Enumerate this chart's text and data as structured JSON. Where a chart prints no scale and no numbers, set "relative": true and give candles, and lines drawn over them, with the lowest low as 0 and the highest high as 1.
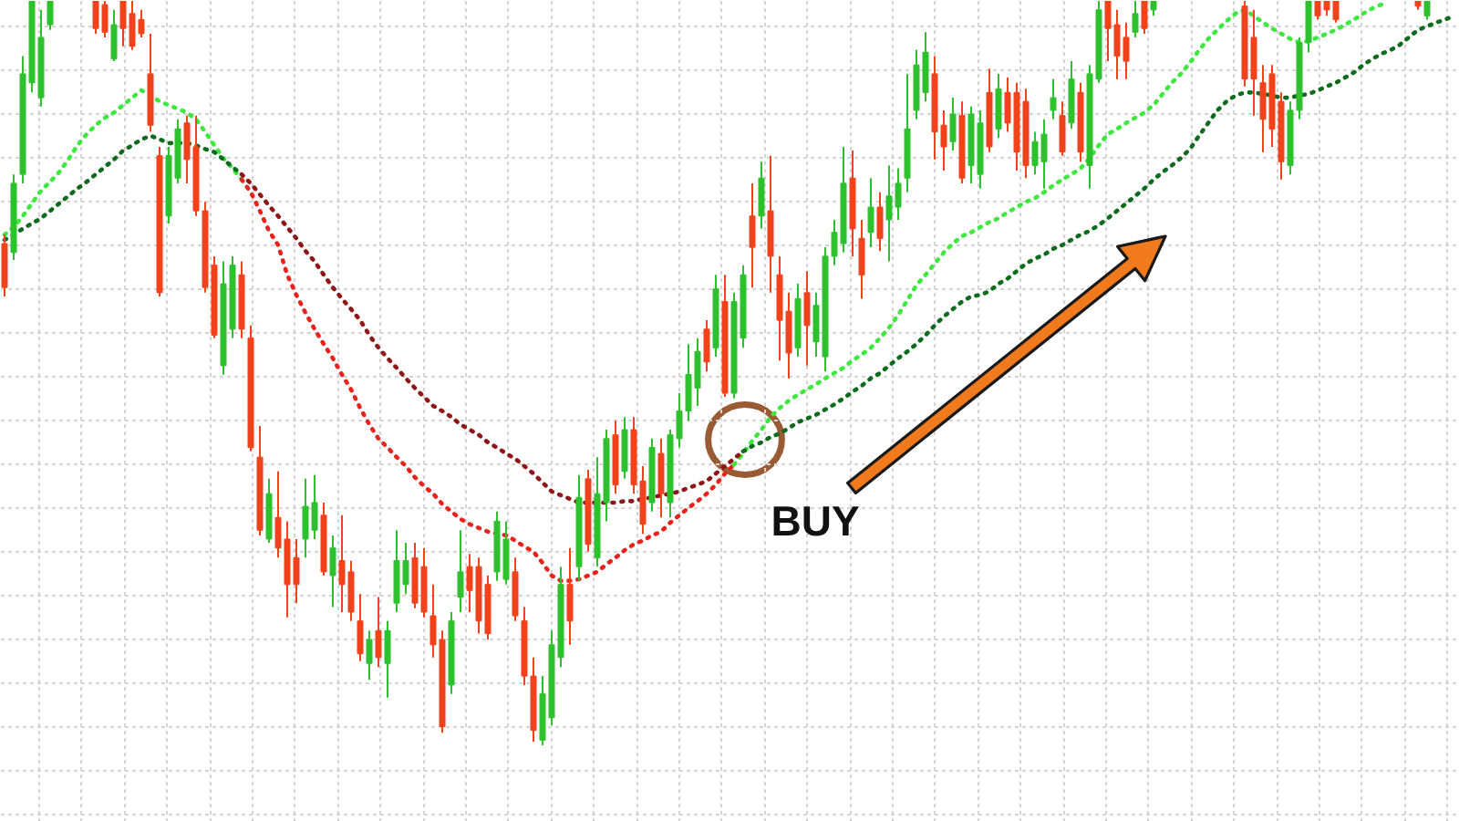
{
  "chart_data": {
    "type": "candlestick",
    "relative": true,
    "tick_labels": false,
    "grid": true,
    "line_style": "dotted",
    "categories": [
      null,
      null,
      null,
      null,
      null,
      null,
      null,
      null,
      null,
      null,
      null,
      null,
      null,
      null,
      null,
      null,
      null,
      null,
      null,
      null,
      null,
      null,
      null,
      null,
      null,
      null,
      null,
      null,
      null,
      null,
      null,
      null,
      null,
      null,
      null,
      null,
      null,
      null,
      null,
      null,
      null,
      null,
      null,
      null,
      null,
      null,
      null,
      null,
      null,
      null,
      null,
      null,
      null,
      null,
      null,
      null,
      null,
      null,
      null,
      null,
      null,
      null,
      null,
      null,
      null,
      null,
      null,
      null,
      null,
      null,
      null,
      null,
      null,
      null,
      null,
      null,
      null,
      null,
      null,
      null,
      null,
      null,
      null,
      null,
      null,
      null,
      null,
      null,
      null,
      null,
      null,
      null,
      null,
      null,
      null,
      null,
      null,
      null,
      null,
      null,
      null,
      null,
      null,
      null,
      null,
      null,
      null,
      null,
      null,
      null,
      null,
      null,
      null,
      null,
      null,
      null,
      null,
      null,
      null,
      null,
      null,
      null,
      null,
      null,
      null,
      null,
      null,
      null,
      null,
      null,
      null,
      null,
      null,
      null,
      null,
      null,
      null,
      null,
      null,
      null,
      null,
      null,
      null,
      null,
      null,
      null,
      null,
      null,
      null,
      null,
      null,
      null,
      null,
      null,
      null,
      null,
      null,
      null,
      null,
      null
    ],
    "ohlc": [
      [
        0.674,
        0.686,
        0.603,
        0.615
      ],
      [
        0.662,
        0.767,
        0.652,
        0.755
      ],
      [
        0.767,
        0.926,
        0.755,
        0.902
      ],
      [
        0.89,
        1,
        0.877,
        1
      ],
      [
        0.87,
        0.988,
        0.858,
        0.951
      ],
      [
        0.968,
        1,
        0.961,
        1
      ],
      null,
      null,
      null,
      null,
      [
        1,
        1,
        0.956,
        0.963
      ],
      [
        0.995,
        1,
        0.951,
        0.958
      ],
      [
        0.922,
        0.988,
        0.919,
        0.968
      ],
      [
        1,
        1,
        0.939,
        0.963
      ],
      [
        0.983,
        1,
        0.934,
        0.939
      ],
      [
        0.975,
        0.988,
        0.951,
        0.956
      ],
      [
        0.902,
        0.956,
        0.824,
        0.833
      ],
      [
        0.792,
        0.804,
        0.603,
        0.608
      ],
      [
        0.711,
        0.804,
        0.701,
        0.792
      ],
      [
        0.762,
        0.841,
        0.755,
        0.828
      ],
      [
        0.836,
        0.846,
        0.755,
        0.787
      ],
      [
        0.804,
        0.846,
        0.711,
        0.718
      ],
      [
        0.718,
        0.73,
        0.608,
        0.615
      ],
      [
        0.645,
        0.657,
        0.547,
        0.551
      ],
      [
        0.51,
        0.65,
        0.498,
        0.62
      ],
      [
        0.559,
        0.657,
        0.547,
        0.645
      ],
      [
        0.632,
        0.65,
        0.547,
        0.559
      ],
      [
        0.547,
        0.564,
        0.395,
        0.4
      ],
      [
        0.387,
        0.429,
        0.282,
        0.289
      ],
      [
        0.277,
        0.358,
        0.272,
        0.338
      ],
      [
        0.306,
        0.368,
        0.252,
        0.265
      ],
      [
        0.277,
        0.301,
        0.172,
        0.216
      ],
      [
        0.252,
        0.277,
        0.191,
        0.216
      ],
      [
        0.277,
        0.358,
        0.252,
        0.321
      ],
      [
        0.289,
        0.363,
        0.277,
        0.326
      ],
      [
        0.309,
        0.326,
        0.228,
        0.233
      ],
      [
        0.228,
        0.282,
        0.186,
        0.265
      ],
      [
        0.248,
        0.309,
        0.179,
        0.216
      ],
      [
        0.233,
        0.248,
        0.167,
        0.179
      ],
      [
        0.167,
        0.203,
        0.113,
        0.123
      ],
      [
        0.11,
        0.154,
        0.088,
        0.142
      ],
      [
        0.154,
        0.199,
        0.105,
        0.118
      ],
      [
        0.11,
        0.167,
        0.064,
        0.154
      ],
      [
        0.191,
        0.289,
        0.179,
        0.248
      ],
      [
        0.216,
        0.272,
        0.203,
        0.248
      ],
      [
        0.252,
        0.272,
        0.184,
        0.191
      ],
      [
        0.24,
        0.265,
        0.172,
        0.179
      ],
      [
        0.174,
        0.216,
        0.118,
        0.135
      ],
      [
        0.142,
        0.154,
        0.017,
        0.025
      ],
      [
        0.081,
        0.179,
        0.069,
        0.167
      ],
      [
        0.199,
        0.289,
        0.179,
        0.233
      ],
      [
        0.24,
        0.257,
        0.179,
        0.208
      ],
      [
        0.24,
        0.252,
        0.15,
        0.167
      ],
      [
        0.216,
        0.228,
        0.142,
        0.15
      ],
      [
        0.233,
        0.314,
        0.221,
        0.301
      ],
      [
        0.223,
        0.301,
        0.216,
        0.277
      ],
      [
        0.233,
        0.252,
        0.167,
        0.174
      ],
      [
        0.167,
        0.186,
        0.081,
        0.093
      ],
      [
        0.093,
        0.118,
        0.005,
        0.02
      ],
      [
        0.007,
        0.093,
        0,
        0.069
      ],
      [
        0.037,
        0.154,
        0.027,
        0.135
      ],
      [
        0.118,
        0.24,
        0.105,
        0.216
      ],
      [
        0.216,
        0.265,
        0.135,
        0.167
      ],
      [
        0.24,
        0.363,
        0.221,
        0.333
      ],
      [
        0.358,
        0.37,
        0.26,
        0.27
      ],
      [
        0.252,
        0.387,
        0.24,
        0.338
      ],
      [
        0.326,
        0.424,
        0.301,
        0.412
      ],
      [
        0.417,
        0.436,
        0.338,
        0.35
      ],
      [
        0.368,
        0.441,
        0.358,
        0.424
      ],
      [
        0.424,
        0.441,
        0.338,
        0.35
      ],
      [
        0.355,
        0.375,
        0.284,
        0.297
      ],
      [
        0.326,
        0.412,
        0.314,
        0.4
      ],
      [
        0.392,
        0.412,
        0.306,
        0.338
      ],
      [
        0.326,
        0.424,
        0.306,
        0.417
      ],
      [
        0.412,
        0.473,
        0.4,
        0.449
      ],
      [
        0.449,
        0.539,
        0.436,
        0.498
      ],
      [
        0.48,
        0.547,
        0.456,
        0.529
      ],
      [
        0.559,
        0.571,
        0.502,
        0.515
      ],
      [
        0.534,
        0.632,
        0.522,
        0.613
      ],
      [
        0.596,
        0.632,
        0.468,
        0.473
      ],
      [
        0.473,
        0.608,
        0.466,
        0.596
      ],
      [
        0.547,
        0.645,
        0.534,
        0.632
      ],
      [
        0.711,
        0.755,
        0.615,
        0.669
      ],
      [
        0.711,
        0.784,
        0.694,
        0.762
      ],
      [
        0.718,
        0.792,
        0.608,
        0.657
      ],
      [
        0.632,
        0.657,
        0.517,
        0.571
      ],
      [
        0.583,
        0.608,
        0.493,
        0.527
      ],
      [
        0.534,
        0.62,
        0.522,
        0.6
      ],
      [
        0.608,
        0.637,
        0.51,
        0.564
      ],
      [
        0.542,
        0.608,
        0.522,
        0.591
      ],
      [
        0.522,
        0.669,
        0.502,
        0.657
      ],
      [
        0.657,
        0.706,
        0.645,
        0.689
      ],
      [
        0.674,
        0.804,
        0.662,
        0.755
      ],
      [
        0.762,
        0.799,
        0.657,
        0.694
      ],
      [
        0.681,
        0.706,
        0.6,
        0.632
      ],
      [
        0.689,
        0.762,
        0.669,
        0.723
      ],
      [
        0.723,
        0.743,
        0.664,
        0.681
      ],
      [
        0.706,
        0.779,
        0.65,
        0.738
      ],
      [
        0.723,
        0.775,
        0.706,
        0.755
      ],
      [
        0.762,
        0.902,
        0.743,
        0.828
      ],
      [
        0.853,
        0.934,
        0.841,
        0.914
      ],
      [
        0.877,
        0.958,
        0.865,
        0.931
      ],
      [
        0.902,
        0.926,
        0.787,
        0.824
      ],
      [
        0.833,
        0.853,
        0.772,
        0.804
      ],
      [
        0.811,
        0.87,
        0.799,
        0.848
      ],
      [
        0.846,
        0.865,
        0.755,
        0.762
      ],
      [
        0.779,
        0.858,
        0.755,
        0.848
      ],
      [
        0.767,
        0.853,
        0.748,
        0.836
      ],
      [
        0.877,
        0.909,
        0.797,
        0.804
      ],
      [
        0.828,
        0.902,
        0.816,
        0.882
      ],
      [
        0.877,
        0.897,
        0.824,
        0.836
      ],
      [
        0.877,
        0.89,
        0.772,
        0.797
      ],
      [
        0.865,
        0.882,
        0.762,
        0.779
      ],
      [
        0.779,
        0.824,
        0.767,
        0.811
      ],
      [
        0.784,
        0.841,
        0.748,
        0.821
      ],
      [
        0.853,
        0.895,
        0.841,
        0.87
      ],
      [
        0.846,
        0.865,
        0.792,
        0.797
      ],
      [
        0.836,
        0.919,
        0.828,
        0.895
      ],
      [
        0.877,
        0.89,
        0.784,
        0.797
      ],
      [
        0.779,
        0.914,
        0.748,
        0.902
      ],
      [
        0.895,
        1,
        0.89,
        0.988
      ],
      [
        1,
        1,
        0.919,
        0.963
      ],
      [
        0.968,
        0.988,
        0.895,
        0.926
      ],
      [
        0.951,
        0.971,
        0.895,
        0.919
      ],
      [
        0.958,
        1,
        0.951,
        0.983
      ],
      [
        1,
        1,
        0.956,
        0.963
      ],
      [
        0.988,
        1,
        0.98,
        1
      ],
      null,
      null,
      null,
      null,
      null,
      null,
      null,
      null,
      null,
      [
        0.993,
        1,
        0.885,
        0.895
      ],
      [
        0.951,
        0.988,
        0.846,
        0.895
      ],
      [
        0.89,
        0.914,
        0.797,
        0.841
      ],
      [
        0.902,
        0.914,
        0.804,
        0.828
      ],
      [
        0.865,
        0.877,
        0.76,
        0.784
      ],
      [
        0.779,
        0.865,
        0.767,
        0.853
      ],
      [
        0.853,
        0.951,
        0.841,
        0.944
      ],
      [
        0.944,
        1,
        0.931,
        1
      ],
      [
        1,
        1,
        0.975,
        0.98
      ],
      [
        1,
        1,
        0.98,
        0.988
      ],
      [
        1,
        1,
        0.971,
        0.975
      ],
      null,
      null,
      null,
      null,
      null,
      null,
      null,
      null,
      [
        1,
        1,
        0.988,
        0.993
      ],
      [
        0.98,
        1,
        0.975,
        1
      ],
      null,
      null,
      null
    ],
    "colors": [
      "#f2421b",
      "#2ec12e",
      "#2ec12e",
      "#2ec12e",
      "#2ec12e",
      "#2ec12e",
      null,
      null,
      null,
      null,
      "#f2421b",
      "#f2421b",
      "#2ec12e",
      "#f2421b",
      "#f2421b",
      "#f2421b",
      "#f2421b",
      "#f2421b",
      "#2ec12e",
      "#2ec12e",
      "#f2421b",
      "#f2421b",
      "#f2421b",
      "#f2421b",
      "#2ec12e",
      "#2ec12e",
      "#f2421b",
      "#f2421b",
      "#f2421b",
      "#2ec12e",
      "#f2421b",
      "#f2421b",
      "#f2421b",
      "#2ec12e",
      "#2ec12e",
      "#f2421b",
      "#2ec12e",
      "#f2421b",
      "#f2421b",
      "#f2421b",
      "#2ec12e",
      "#f2421b",
      "#2ec12e",
      "#2ec12e",
      "#2ec12e",
      "#f2421b",
      "#f2421b",
      "#f2421b",
      "#f2421b",
      "#2ec12e",
      "#2ec12e",
      "#f2421b",
      "#f2421b",
      "#f2421b",
      "#2ec12e",
      "#2ec12e",
      "#f2421b",
      "#f2421b",
      "#f2421b",
      "#2ec12e",
      "#2ec12e",
      "#2ec12e",
      "#f2421b",
      "#2ec12e",
      "#f2421b",
      "#2ec12e",
      "#2ec12e",
      "#f2421b",
      "#2ec12e",
      "#f2421b",
      "#f2421b",
      "#2ec12e",
      "#f2421b",
      "#2ec12e",
      "#2ec12e",
      "#2ec12e",
      "#2ec12e",
      "#f2421b",
      "#2ec12e",
      "#f2421b",
      "#2ec12e",
      "#2ec12e",
      "#f2421b",
      "#2ec12e",
      "#f2421b",
      "#f2421b",
      "#f2421b",
      "#2ec12e",
      "#f2421b",
      "#2ec12e",
      "#2ec12e",
      "#2ec12e",
      "#2ec12e",
      "#f2421b",
      "#f2421b",
      "#2ec12e",
      "#f2421b",
      "#2ec12e",
      "#2ec12e",
      "#2ec12e",
      "#2ec12e",
      "#2ec12e",
      "#f2421b",
      "#f2421b",
      "#2ec12e",
      "#f2421b",
      "#2ec12e",
      "#2ec12e",
      "#f2421b",
      "#2ec12e",
      "#f2421b",
      "#f2421b",
      "#f2421b",
      "#2ec12e",
      "#2ec12e",
      "#2ec12e",
      "#f2421b",
      "#2ec12e",
      "#f2421b",
      "#2ec12e",
      "#2ec12e",
      "#f2421b",
      "#f2421b",
      "#f2421b",
      "#2ec12e",
      "#f2421b",
      "#2ec12e",
      null,
      null,
      null,
      null,
      null,
      null,
      null,
      null,
      null,
      "#f2421b",
      "#f2421b",
      "#f2421b",
      "#f2421b",
      "#f2421b",
      "#2ec12e",
      "#2ec12e",
      "#2ec12e",
      "#f2421b",
      "#f2421b",
      "#f2421b",
      null,
      null,
      null,
      null,
      null,
      null,
      null,
      null,
      "#f2421b",
      "#2ec12e",
      null,
      null,
      null
    ],
    "series": [
      {
        "type": "line",
        "color": "#3ee83e",
        "values": [
          0.686,
          0.696,
          0.711,
          0.728,
          0.745,
          0.757,
          0.77,
          0.787,
          0.806,
          0.821,
          0.833,
          0.843,
          0.85,
          0.86,
          0.87,
          0.88,
          0.873,
          0.865,
          0.86,
          0.855,
          0.85,
          0.841,
          0.824,
          0.806,
          0.789,
          0.775,
          0.76,
          null,
          null,
          null,
          null,
          null,
          null,
          null,
          null,
          null,
          null,
          null,
          null,
          null,
          null,
          null,
          null,
          null,
          null,
          null,
          null,
          null,
          null,
          null,
          null,
          null,
          null,
          null,
          null,
          null,
          null,
          null,
          null,
          null,
          null,
          null,
          null,
          null,
          null,
          null,
          null,
          null,
          null,
          null,
          null,
          null,
          null,
          null,
          null,
          null,
          null,
          null,
          null,
          null,
          null,
          null,
          null,
          null,
          null,
          null,
          null,
          null,
          null,
          null,
          null,
          null,
          null,
          null,
          null,
          null,
          null,
          null,
          null,
          null,
          null,
          null,
          null,
          null,
          null,
          null,
          null,
          null,
          null,
          null,
          null,
          null,
          null,
          null,
          null,
          null,
          null,
          null,
          null,
          null,
          null,
          null,
          null,
          null,
          null,
          null,
          null,
          null,
          null,
          null,
          null,
          null,
          null,
          null,
          null,
          null,
          null,
          null,
          null,
          null,
          null,
          null,
          null,
          null,
          null,
          null,
          null,
          null,
          null,
          null,
          null,
          null,
          null,
          null,
          null,
          null,
          null,
          null,
          null,
          null
        ]
      },
      {
        "type": "line",
        "color": "#e8231c",
        "values": [
          null,
          null,
          null,
          null,
          null,
          null,
          null,
          null,
          null,
          null,
          null,
          null,
          null,
          null,
          null,
          null,
          null,
          null,
          null,
          null,
          null,
          null,
          null,
          null,
          null,
          null,
          0.76,
          0.743,
          0.718,
          0.691,
          0.672,
          0.632,
          0.605,
          0.581,
          0.559,
          0.539,
          0.52,
          0.498,
          0.478,
          0.453,
          0.431,
          0.412,
          0.4,
          0.387,
          0.375,
          0.36,
          0.348,
          0.338,
          0.324,
          0.314,
          0.304,
          0.297,
          0.292,
          0.287,
          0.284,
          0.282,
          0.275,
          0.267,
          0.26,
          0.245,
          0.228,
          0.221,
          0.221,
          0.223,
          0.228,
          0.233,
          0.243,
          0.252,
          0.262,
          0.27,
          0.275,
          0.282,
          0.287,
          0.299,
          0.309,
          0.319,
          0.328,
          0.338,
          0.35,
          0.365,
          0.377,
          null,
          null,
          null,
          null,
          null,
          null,
          null,
          null,
          null,
          null,
          null,
          null,
          null,
          null,
          null,
          null,
          null,
          null,
          null,
          null,
          null,
          null,
          null,
          null,
          null,
          null,
          null,
          null,
          null,
          null,
          null,
          null,
          null,
          null,
          null,
          null,
          null,
          null,
          null,
          null,
          null,
          null,
          null,
          null,
          null,
          null,
          null,
          null,
          null,
          null,
          null,
          null,
          null,
          null,
          null,
          null,
          null,
          null,
          null,
          null,
          null,
          null,
          null,
          null,
          null,
          null,
          null,
          null,
          null,
          null,
          null,
          null,
          null,
          null,
          null,
          null,
          null,
          null,
          null
        ]
      },
      {
        "type": "line",
        "color": "#3ee83e",
        "values": [
          null,
          null,
          null,
          null,
          null,
          null,
          null,
          null,
          null,
          null,
          null,
          null,
          null,
          null,
          null,
          null,
          null,
          null,
          null,
          null,
          null,
          null,
          null,
          null,
          null,
          null,
          null,
          null,
          null,
          null,
          null,
          null,
          null,
          null,
          null,
          null,
          null,
          null,
          null,
          null,
          null,
          null,
          null,
          null,
          null,
          null,
          null,
          null,
          null,
          null,
          null,
          null,
          null,
          null,
          null,
          null,
          null,
          null,
          null,
          null,
          null,
          null,
          null,
          null,
          null,
          null,
          null,
          null,
          null,
          null,
          null,
          null,
          null,
          null,
          null,
          null,
          null,
          null,
          null,
          null,
          0.377,
          0.392,
          0.409,
          0.424,
          0.441,
          0.453,
          0.463,
          0.471,
          0.478,
          0.485,
          0.493,
          0.5,
          0.507,
          0.517,
          0.525,
          0.534,
          0.547,
          0.561,
          0.578,
          0.598,
          0.618,
          0.632,
          0.647,
          0.662,
          0.674,
          0.684,
          0.689,
          0.696,
          0.703,
          0.708,
          0.716,
          0.723,
          0.73,
          0.735,
          0.743,
          0.752,
          0.76,
          0.767,
          0.775,
          0.789,
          0.806,
          0.821,
          0.828,
          0.836,
          0.843,
          0.85,
          0.86,
          0.875,
          0.89,
          0.902,
          0.917,
          0.934,
          0.949,
          0.961,
          0.973,
          0.983,
          0.988,
          0.98,
          0.971,
          0.963,
          0.956,
          0.949,
          0.944,
          0.946,
          0.951,
          0.956,
          0.961,
          0.968,
          0.975,
          0.983,
          0.99,
          0.995,
          null,
          null,
          null,
          null,
          null,
          null,
          null,
          null
        ]
      },
      {
        "type": "line",
        "color": "#0d6b1c",
        "values": [
          0.679,
          0.686,
          0.694,
          0.701,
          0.708,
          0.718,
          0.728,
          0.738,
          0.748,
          0.757,
          0.767,
          0.777,
          0.787,
          0.799,
          0.806,
          0.814,
          0.819,
          0.814,
          0.809,
          0.809,
          0.809,
          0.806,
          0.801,
          0.797,
          0.787,
          0.777,
          0.767,
          null,
          null,
          null,
          null,
          null,
          null,
          null,
          null,
          null,
          null,
          null,
          null,
          null,
          null,
          null,
          null,
          null,
          null,
          null,
          null,
          null,
          null,
          null,
          null,
          null,
          null,
          null,
          null,
          null,
          null,
          null,
          null,
          null,
          null,
          null,
          null,
          null,
          null,
          null,
          null,
          null,
          null,
          null,
          null,
          null,
          null,
          null,
          null,
          null,
          null,
          null,
          null,
          null,
          null,
          null,
          null,
          null,
          null,
          null,
          null,
          null,
          null,
          null,
          null,
          null,
          null,
          null,
          null,
          null,
          null,
          null,
          null,
          null,
          null,
          null,
          null,
          null,
          null,
          null,
          null,
          null,
          null,
          null,
          null,
          null,
          null,
          null,
          null,
          null,
          null,
          null,
          null,
          null,
          null,
          null,
          null,
          null,
          null,
          null,
          null,
          null,
          null,
          null,
          null,
          null,
          null,
          null,
          null,
          null,
          null,
          null,
          null,
          null,
          null,
          null,
          null,
          null,
          null,
          null,
          null,
          null,
          null,
          null,
          null,
          null,
          null,
          null,
          null,
          null,
          null,
          null,
          null,
          null
        ]
      },
      {
        "type": "line",
        "color": "#8e1616",
        "values": [
          null,
          null,
          null,
          null,
          null,
          null,
          null,
          null,
          null,
          null,
          null,
          null,
          null,
          null,
          null,
          null,
          null,
          null,
          null,
          null,
          null,
          null,
          null,
          null,
          null,
          null,
          0.767,
          0.755,
          0.74,
          0.725,
          0.711,
          0.696,
          0.681,
          0.664,
          0.65,
          0.632,
          0.615,
          0.6,
          0.586,
          0.571,
          0.551,
          0.534,
          0.52,
          0.507,
          0.493,
          0.48,
          0.468,
          0.456,
          0.449,
          0.441,
          0.431,
          0.424,
          0.417,
          0.407,
          0.4,
          0.392,
          0.385,
          0.375,
          0.365,
          0.353,
          0.341,
          0.336,
          0.331,
          0.326,
          0.326,
          0.326,
          0.326,
          0.326,
          0.328,
          0.328,
          0.331,
          0.333,
          0.336,
          0.338,
          0.341,
          0.346,
          0.35,
          0.355,
          0.365,
          0.375,
          0.385,
          0.395,
          null,
          null,
          null,
          null,
          null,
          null,
          null,
          null,
          null,
          null,
          null,
          null,
          null,
          null,
          null,
          null,
          null,
          null,
          null,
          null,
          null,
          null,
          null,
          null,
          null,
          null,
          null,
          null,
          null,
          null,
          null,
          null,
          null,
          null,
          null,
          null,
          null,
          null,
          null,
          null,
          null,
          null,
          null,
          null,
          null,
          null,
          null,
          null,
          null,
          null,
          null,
          null,
          null,
          null,
          null,
          null,
          null,
          null,
          null,
          null,
          null,
          null,
          null,
          null,
          null,
          null,
          null,
          null,
          null,
          null,
          null,
          null,
          null,
          null,
          null,
          null,
          null,
          null
        ]
      },
      {
        "type": "line",
        "color": "#0d6b1c",
        "values": [
          null,
          null,
          null,
          null,
          null,
          null,
          null,
          null,
          null,
          null,
          null,
          null,
          null,
          null,
          null,
          null,
          null,
          null,
          null,
          null,
          null,
          null,
          null,
          null,
          null,
          null,
          null,
          null,
          null,
          null,
          null,
          null,
          null,
          null,
          null,
          null,
          null,
          null,
          null,
          null,
          null,
          null,
          null,
          null,
          null,
          null,
          null,
          null,
          null,
          null,
          null,
          null,
          null,
          null,
          null,
          null,
          null,
          null,
          null,
          null,
          null,
          null,
          null,
          null,
          null,
          null,
          null,
          null,
          null,
          null,
          null,
          null,
          null,
          null,
          null,
          null,
          null,
          null,
          null,
          null,
          null,
          0.395,
          0.402,
          0.407,
          0.414,
          0.419,
          0.426,
          0.434,
          0.439,
          0.444,
          0.451,
          0.458,
          0.466,
          0.475,
          0.483,
          0.493,
          0.5,
          0.51,
          0.52,
          0.529,
          0.539,
          0.551,
          0.564,
          0.576,
          0.586,
          0.596,
          0.603,
          0.605,
          0.61,
          0.62,
          0.627,
          0.637,
          0.647,
          0.654,
          0.659,
          0.667,
          0.672,
          0.679,
          0.686,
          0.691,
          0.699,
          0.708,
          0.718,
          0.728,
          0.738,
          0.748,
          0.76,
          0.77,
          0.779,
          0.789,
          0.801,
          0.819,
          0.836,
          0.853,
          0.865,
          0.873,
          0.877,
          0.877,
          0.875,
          0.873,
          0.87,
          0.87,
          0.873,
          0.875,
          0.88,
          0.885,
          0.89,
          0.897,
          0.904,
          0.914,
          0.922,
          0.929,
          0.934,
          0.941,
          0.951,
          0.961,
          0.966,
          0.971,
          0.975,
          0.98
        ]
      }
    ],
    "annotations": [
      "BUY"
    ]
  }
}
